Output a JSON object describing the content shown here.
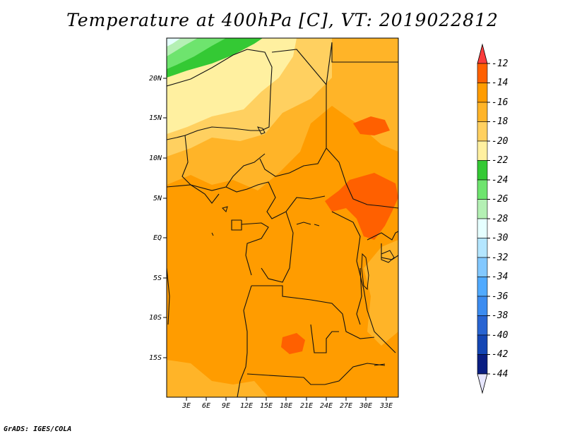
{
  "title": "Temperature at 400hPa [C], VT: 2019022812",
  "credit": "GrADS: IGES/COLA",
  "map": {
    "lat_labels": [
      "20N",
      "15N",
      "10N",
      "5N",
      "EQ",
      "5S",
      "10S",
      "15S"
    ],
    "lon_labels": [
      "3E",
      "6E",
      "9E",
      "12E",
      "15E",
      "18E",
      "21E",
      "24E",
      "27E",
      "30E",
      "33E"
    ],
    "shading_colors": [
      "#ff6000",
      "#ff9c00",
      "#ffb428",
      "#ffd060",
      "#fff0a0",
      "#34c934",
      "#6ee46e",
      "#b4f0b4",
      "#e6ffff"
    ]
  },
  "colorbar": {
    "labels": [
      "-12",
      "-14",
      "-16",
      "-18",
      "-20",
      "-22",
      "-24",
      "-26",
      "-28",
      "-30",
      "-32",
      "-34",
      "-36",
      "-38",
      "-40",
      "-42",
      "-44"
    ],
    "colors": [
      "#fa3c3c",
      "#ff6000",
      "#ff9c00",
      "#ffb428",
      "#ffd060",
      "#fff0a0",
      "#34c934",
      "#6ee46e",
      "#b4f0b4",
      "#e6ffff",
      "#b4e6ff",
      "#82c8ff",
      "#50aaff",
      "#3c8cf0",
      "#2864d2",
      "#1446b4",
      "#0a1e82",
      "#e6e6ff"
    ]
  }
}
